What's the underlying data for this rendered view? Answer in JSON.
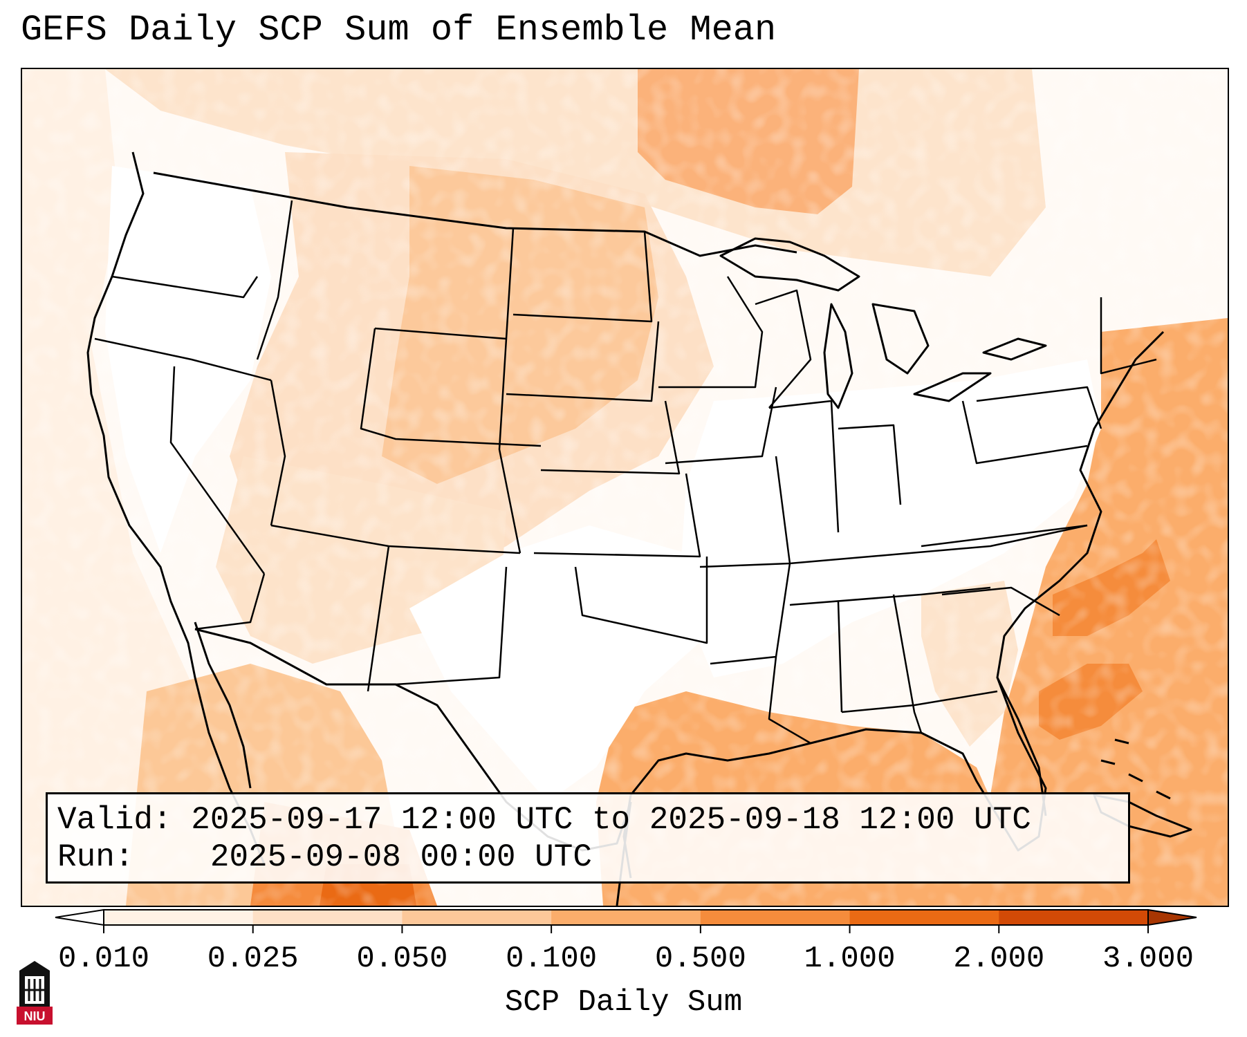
{
  "title": "GEFS Daily SCP Sum of Ensemble Mean",
  "info": {
    "valid_label": "Valid:",
    "valid_value": "2025-09-17 12:00 UTC to 2025-09-18 12:00 UTC",
    "run_label": "Run:",
    "run_value": "2025-09-08 00:00 UTC"
  },
  "colorbar": {
    "label": "SCP Daily Sum",
    "ticks": [
      "0.010",
      "0.025",
      "0.050",
      "0.100",
      "0.500",
      "1.000",
      "2.000",
      "3.000"
    ],
    "colors": [
      "#fff2e6",
      "#fee0c6",
      "#fdc89a",
      "#fbad6b",
      "#f58c3c",
      "#ea6a14",
      "#d24a06"
    ],
    "under_color": "#ffffff",
    "over_color": "#a83602",
    "extend": "both"
  },
  "logo": {
    "text": "NIU",
    "colors": {
      "red": "#c8102e",
      "black": "#111111"
    }
  }
}
